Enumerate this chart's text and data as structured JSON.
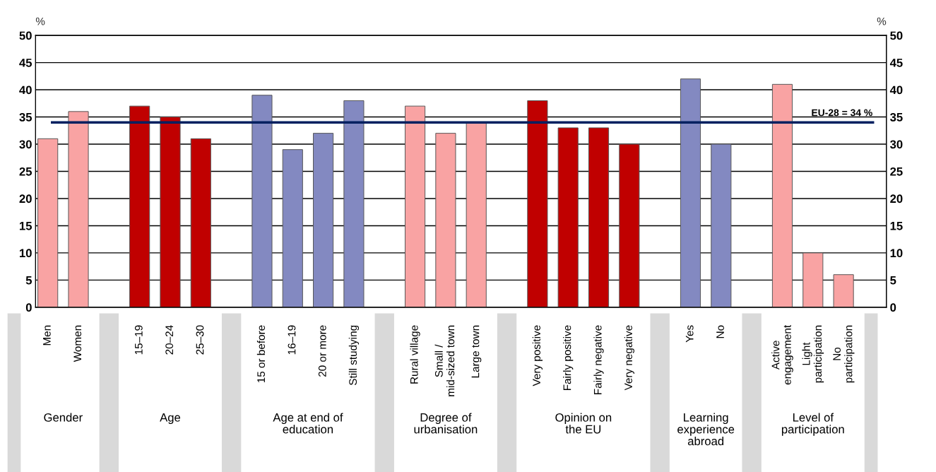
{
  "chart_data": {
    "type": "bar",
    "categories": [
      "Men",
      "Women",
      null,
      "15–19",
      "20–24",
      "25–30",
      null,
      "15 or before",
      "16–19",
      "20 or more",
      "Still studying",
      null,
      "Rural village",
      "Small /\nmid-sized town",
      "Large town",
      null,
      "Very positive",
      "Fairly positive",
      "Fairly negative",
      "Very negative",
      null,
      "Yes",
      "No",
      null,
      "Active\nengagement",
      "Light\nparticipation",
      "No\nparticipation"
    ],
    "values": [
      31,
      36,
      null,
      37,
      35,
      31,
      null,
      39,
      29,
      32,
      38,
      null,
      37,
      32,
      34,
      null,
      38,
      33,
      33,
      30,
      null,
      42,
      30,
      null,
      41,
      10,
      6
    ],
    "colors": [
      "#f9a3a3",
      "#f9a3a3",
      null,
      "#c00000",
      "#c00000",
      "#c00000",
      null,
      "#8389c1",
      "#8389c1",
      "#8389c1",
      "#8389c1",
      null,
      "#f9a3a3",
      "#f9a3a3",
      "#f9a3a3",
      null,
      "#c00000",
      "#c00000",
      "#c00000",
      "#c00000",
      null,
      "#8389c1",
      "#8389c1",
      null,
      "#f9a3a3",
      "#f9a3a3",
      "#f9a3a3"
    ],
    "ylabel": "%",
    "y2label": "%",
    "ylim": [
      0,
      50
    ],
    "yticks": [
      0,
      5,
      10,
      15,
      20,
      25,
      30,
      35,
      40,
      45,
      50
    ],
    "y2lim": [
      0,
      50
    ],
    "y2ticks": [
      0,
      5,
      10,
      15,
      20,
      25,
      30,
      35,
      40,
      45,
      50
    ],
    "grid": "y",
    "ref_lines": [
      {
        "axis": "y",
        "value": 34,
        "label": "EU-28 = 34 %",
        "color": "#002060"
      }
    ],
    "annotations": [
      "Gender",
      "Age",
      "Age at end of\neducation",
      "Degree of\nurbanisation",
      "Opinion on\nthe EU",
      "Learning\nexperience\nabroad",
      "Level of\nparticipation"
    ]
  }
}
